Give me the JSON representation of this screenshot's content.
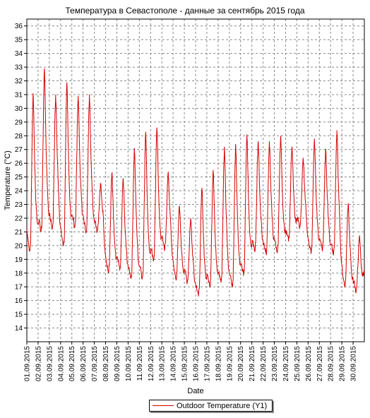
{
  "chart_data": {
    "type": "line",
    "title": "Температура в Севастополе - данные за сентябрь 2015 года",
    "xlabel": "Date",
    "ylabel": "Temperature (°C)",
    "ylim": [
      13,
      36.5
    ],
    "xlim": [
      1,
      31
    ],
    "grid": true,
    "legend_position": "bottom-center",
    "yticks": [
      14,
      15,
      16,
      17,
      18,
      19,
      20,
      21,
      22,
      23,
      24,
      25,
      26,
      27,
      28,
      29,
      30,
      31,
      32,
      33,
      34,
      35,
      36
    ],
    "x_tick_labels": [
      "01.09.2015",
      "02.09.2015",
      "03.09.2015",
      "04.09.2015",
      "05.09.2015",
      "06.09.2015",
      "07.09.2015",
      "08.09.2015",
      "09.09.2015",
      "10.09.2015",
      "11.09.2015",
      "12.09.2015",
      "13.09.2015",
      "14.09.2015",
      "15.09.2015",
      "16.09.2015",
      "17.09.2015",
      "18.09.2015",
      "19.09.2015",
      "20.09.2015",
      "21.09.2015",
      "22.09.2015",
      "23.09.2015",
      "24.09.2015",
      "25.09.2015",
      "26.09.2015",
      "27.09.2015",
      "28.09.2015",
      "29.09.2015",
      "30.09.2015"
    ],
    "series": [
      {
        "name": "Outdoor Temperature (Y1)",
        "color": "#d40000",
        "daily_min_max": [
          {
            "date": "01.09.2015",
            "min": 19.6,
            "max": 31.1
          },
          {
            "date": "02.09.2015",
            "min": 21.0,
            "max": 32.9
          },
          {
            "date": "03.09.2015",
            "min": 21.2,
            "max": 31.0
          },
          {
            "date": "04.09.2015",
            "min": 20.0,
            "max": 31.9
          },
          {
            "date": "05.09.2015",
            "min": 21.3,
            "max": 30.9
          },
          {
            "date": "06.09.2015",
            "min": 21.0,
            "max": 31.0
          },
          {
            "date": "07.09.2015",
            "min": 21.0,
            "max": 24.5
          },
          {
            "date": "08.09.2015",
            "min": 18.0,
            "max": 25.3
          },
          {
            "date": "09.09.2015",
            "min": 18.2,
            "max": 24.9
          },
          {
            "date": "10.09.2015",
            "min": 17.6,
            "max": 27.1
          },
          {
            "date": "11.09.2015",
            "min": 17.6,
            "max": 28.3
          },
          {
            "date": "12.09.2015",
            "min": 18.9,
            "max": 28.6
          },
          {
            "date": "13.09.2015",
            "min": 19.7,
            "max": 25.3
          },
          {
            "date": "14.09.2015",
            "min": 17.5,
            "max": 22.9
          },
          {
            "date": "15.09.2015",
            "min": 17.3,
            "max": 22.0
          },
          {
            "date": "16.09.2015",
            "min": 16.3,
            "max": 24.2
          },
          {
            "date": "17.09.2015",
            "min": 17.0,
            "max": 25.5
          },
          {
            "date": "18.09.2015",
            "min": 17.3,
            "max": 27.2
          },
          {
            "date": "19.09.2015",
            "min": 17.0,
            "max": 27.4
          },
          {
            "date": "20.09.2015",
            "min": 17.8,
            "max": 28.1
          },
          {
            "date": "21.09.2015",
            "min": 19.6,
            "max": 27.6
          },
          {
            "date": "22.09.2015",
            "min": 19.4,
            "max": 27.6
          },
          {
            "date": "23.09.2015",
            "min": 19.5,
            "max": 28.0
          },
          {
            "date": "24.09.2015",
            "min": 20.3,
            "max": 27.2
          },
          {
            "date": "25.09.2015",
            "min": 21.3,
            "max": 26.4
          },
          {
            "date": "26.09.2015",
            "min": 19.4,
            "max": 27.8
          },
          {
            "date": "27.09.2015",
            "min": 19.6,
            "max": 27.0
          },
          {
            "date": "28.09.2015",
            "min": 19.3,
            "max": 28.4
          },
          {
            "date": "29.09.2015",
            "min": 17.0,
            "max": 23.1
          },
          {
            "date": "30.09.2015",
            "min": 16.6,
            "max": 20.7
          }
        ],
        "end_value": 18.0
      }
    ]
  },
  "legend": {
    "label": "Outdoor Temperature (Y1)"
  }
}
